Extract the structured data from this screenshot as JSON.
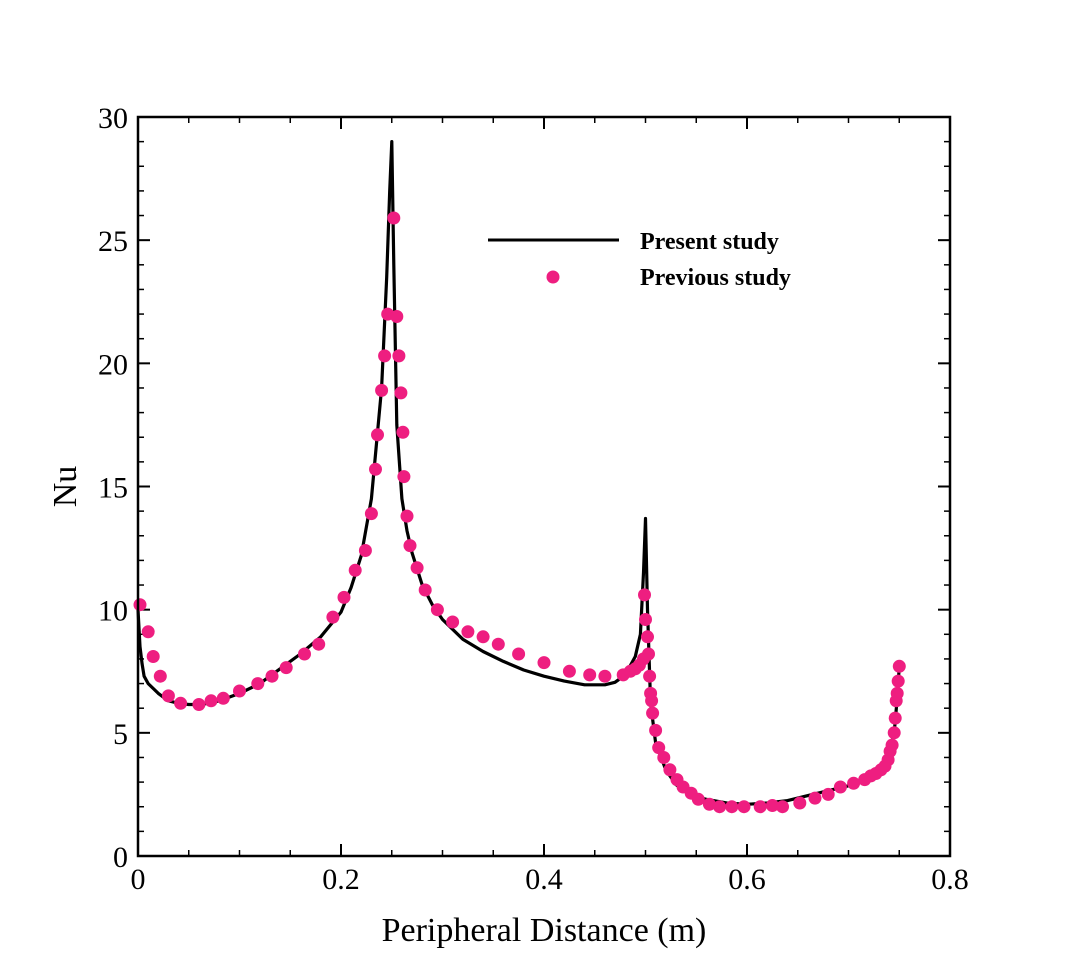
{
  "chart_data": {
    "type": "line",
    "title": "",
    "xlabel": "Peripheral Distance (m)",
    "ylabel": "Nu",
    "xlim": [
      0,
      0.8
    ],
    "ylim": [
      0,
      30
    ],
    "x_ticks": [
      0,
      0.2,
      0.4,
      0.6,
      0.8
    ],
    "x_tick_labels": [
      "0",
      "0.2",
      "0.4",
      "0.6",
      "0.8"
    ],
    "y_ticks": [
      0,
      5,
      10,
      15,
      20,
      25,
      30
    ],
    "y_tick_labels": [
      "0",
      "5",
      "10",
      "15",
      "20",
      "25",
      "30"
    ],
    "grid": false,
    "legend_position": "top-right",
    "colors": {
      "line": "#000000",
      "points": "#ee1e80"
    },
    "series": [
      {
        "name": "Present study",
        "style": "line",
        "x": [
          0.0,
          0.002,
          0.004,
          0.006,
          0.01,
          0.02,
          0.03,
          0.04,
          0.05,
          0.06,
          0.07,
          0.08,
          0.09,
          0.1,
          0.12,
          0.14,
          0.16,
          0.18,
          0.2,
          0.21,
          0.22,
          0.23,
          0.24,
          0.245,
          0.248,
          0.25,
          0.252,
          0.255,
          0.26,
          0.265,
          0.27,
          0.28,
          0.29,
          0.3,
          0.32,
          0.34,
          0.36,
          0.38,
          0.4,
          0.42,
          0.44,
          0.46,
          0.47,
          0.48,
          0.49,
          0.495,
          0.498,
          0.5,
          0.502,
          0.505,
          0.51,
          0.52,
          0.53,
          0.54,
          0.55,
          0.56,
          0.58,
          0.6,
          0.62,
          0.64,
          0.66,
          0.68,
          0.7,
          0.72,
          0.73,
          0.735,
          0.74,
          0.745,
          0.748,
          0.75
        ],
        "y": [
          10.0,
          8.5,
          7.8,
          7.3,
          7.0,
          6.6,
          6.3,
          6.2,
          6.15,
          6.15,
          6.2,
          6.3,
          6.45,
          6.6,
          7.0,
          7.6,
          8.2,
          8.9,
          9.9,
          10.9,
          12.2,
          14.5,
          19.0,
          23.5,
          27.0,
          29.0,
          24.0,
          17.5,
          14.5,
          13.2,
          12.3,
          11.0,
          10.2,
          9.6,
          8.8,
          8.3,
          7.9,
          7.55,
          7.3,
          7.1,
          6.95,
          6.95,
          7.05,
          7.35,
          8.1,
          9.0,
          11.5,
          13.7,
          10.0,
          6.2,
          4.6,
          3.5,
          2.9,
          2.6,
          2.4,
          2.3,
          2.15,
          2.1,
          2.15,
          2.25,
          2.45,
          2.65,
          2.85,
          3.2,
          3.45,
          3.7,
          4.1,
          5.0,
          6.4,
          7.7
        ]
      },
      {
        "name": "Previous study",
        "style": "markers",
        "x": [
          0.002,
          0.01,
          0.015,
          0.022,
          0.03,
          0.042,
          0.06,
          0.072,
          0.084,
          0.1,
          0.118,
          0.132,
          0.146,
          0.164,
          0.178,
          0.192,
          0.203,
          0.214,
          0.224,
          0.23,
          0.234,
          0.236,
          0.24,
          0.243,
          0.246,
          0.252,
          0.255,
          0.257,
          0.259,
          0.261,
          0.262,
          0.265,
          0.268,
          0.275,
          0.283,
          0.295,
          0.31,
          0.325,
          0.34,
          0.355,
          0.375,
          0.4,
          0.425,
          0.445,
          0.46,
          0.478,
          0.485,
          0.49,
          0.494,
          0.498,
          0.499,
          0.5,
          0.502,
          0.503,
          0.504,
          0.505,
          0.506,
          0.507,
          0.51,
          0.513,
          0.518,
          0.524,
          0.531,
          0.537,
          0.545,
          0.552,
          0.563,
          0.573,
          0.585,
          0.597,
          0.613,
          0.625,
          0.635,
          0.652,
          0.667,
          0.68,
          0.692,
          0.705,
          0.716,
          0.722,
          0.727,
          0.732,
          0.736,
          0.739,
          0.741,
          0.743,
          0.745,
          0.746,
          0.747,
          0.748,
          0.749,
          0.75
        ],
        "y": [
          10.2,
          9.1,
          8.1,
          7.3,
          6.5,
          6.2,
          6.15,
          6.3,
          6.4,
          6.7,
          7.0,
          7.3,
          7.65,
          8.2,
          8.6,
          9.7,
          10.5,
          11.6,
          12.4,
          13.9,
          15.7,
          17.1,
          18.9,
          20.3,
          22.0,
          25.9,
          21.9,
          20.3,
          18.8,
          17.2,
          15.4,
          13.8,
          12.6,
          11.7,
          10.8,
          10.0,
          9.5,
          9.1,
          8.9,
          8.6,
          8.2,
          7.85,
          7.5,
          7.35,
          7.3,
          7.35,
          7.5,
          7.6,
          7.75,
          8.0,
          10.6,
          9.6,
          8.9,
          8.2,
          7.3,
          6.6,
          6.3,
          5.8,
          5.1,
          4.4,
          4.0,
          3.5,
          3.1,
          2.8,
          2.55,
          2.3,
          2.1,
          2.0,
          2.0,
          2.0,
          2.0,
          2.05,
          2.0,
          2.15,
          2.35,
          2.5,
          2.8,
          2.95,
          3.1,
          3.25,
          3.35,
          3.5,
          3.65,
          3.9,
          4.25,
          4.5,
          5.0,
          5.6,
          6.3,
          6.6,
          7.1,
          7.7
        ]
      }
    ]
  }
}
